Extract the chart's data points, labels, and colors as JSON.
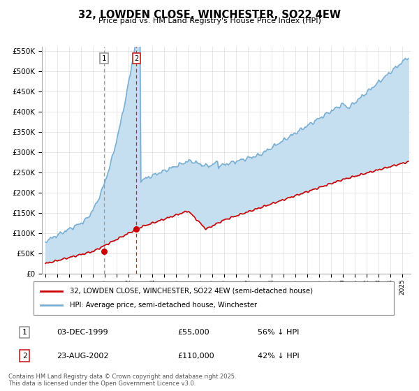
{
  "title": "32, LOWDEN CLOSE, WINCHESTER, SO22 4EW",
  "subtitle": "Price paid vs. HM Land Registry's House Price Index (HPI)",
  "legend_line1": "32, LOWDEN CLOSE, WINCHESTER, SO22 4EW (semi-detached house)",
  "legend_line2": "HPI: Average price, semi-detached house, Winchester",
  "transaction1_date": "03-DEC-1999",
  "transaction1_price": "£55,000",
  "transaction1_hpi": "56% ↓ HPI",
  "transaction2_date": "23-AUG-2002",
  "transaction2_price": "£110,000",
  "transaction2_hpi": "42% ↓ HPI",
  "footnote": "Contains HM Land Registry data © Crown copyright and database right 2025.\nThis data is licensed under the Open Government Licence v3.0.",
  "hpi_color": "#7aafd4",
  "hpi_fill_color": "#c5dff0",
  "price_color": "#cc0000",
  "vline1_color": "#999999",
  "vline2_color": "#cc2222",
  "ylim_min": 0,
  "ylim_max": 560000,
  "ytick_max": 550000,
  "ytick_step": 50000,
  "year_start": 1995,
  "year_end": 2025,
  "transaction1_year": 1999.92,
  "transaction2_year": 2002.64,
  "transaction1_price_val": 55000,
  "transaction2_price_val": 110000
}
